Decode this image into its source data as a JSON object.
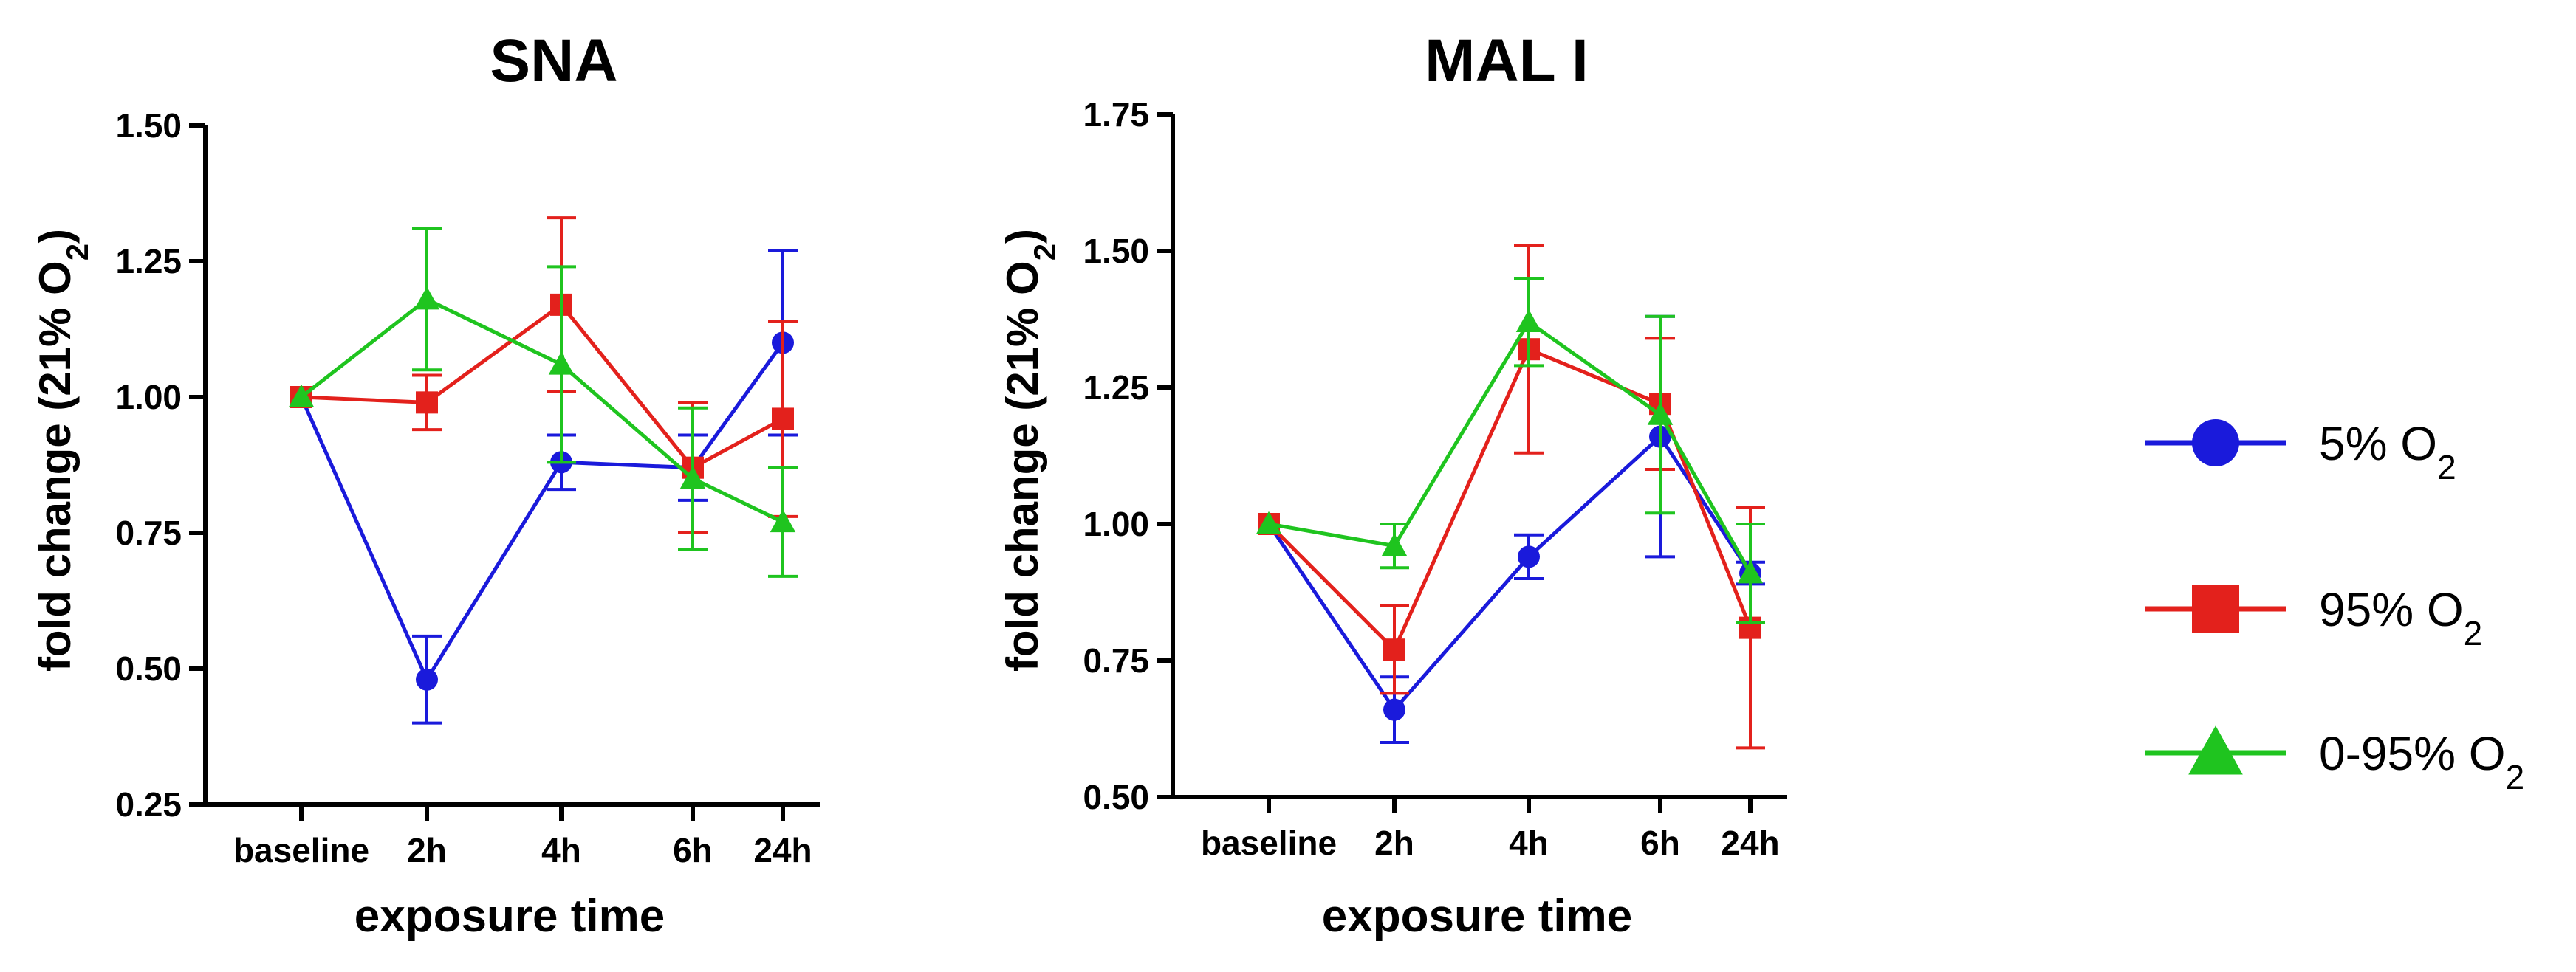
{
  "chart_data": [
    {
      "type": "line",
      "title": "SNA",
      "xlabel": "exposure time",
      "ylabel_main": "fold change (21% O",
      "ylabel_sub": "2",
      "ylabel_end": ")",
      "categories": [
        "baseline",
        "2h",
        "4h",
        "6h",
        "24h"
      ],
      "ylim": [
        0.25,
        1.5
      ],
      "yticks": [
        0.25,
        0.5,
        0.75,
        1.0,
        1.25,
        1.5
      ],
      "ytick_labels": [
        "0.25",
        "0.50",
        "0.75",
        "1.00",
        "1.25",
        "1.50"
      ],
      "series": [
        {
          "name": "5% O2",
          "color": "#1a1adb",
          "marker": "circle",
          "values": [
            1.0,
            0.48,
            0.88,
            0.87,
            1.1
          ],
          "err": [
            0,
            0.08,
            0.05,
            0.06,
            0.17
          ]
        },
        {
          "name": "95% O2",
          "color": "#e3211c",
          "marker": "square",
          "values": [
            1.0,
            0.99,
            1.17,
            0.87,
            0.96
          ],
          "err": [
            0,
            0.05,
            0.16,
            0.12,
            0.18
          ]
        },
        {
          "name": "0-95% O2",
          "color": "#1fc41f",
          "marker": "triangle",
          "values": [
            1.0,
            1.18,
            1.06,
            0.85,
            0.77
          ],
          "err": [
            0,
            0.13,
            0.18,
            0.13,
            0.1
          ]
        }
      ]
    },
    {
      "type": "line",
      "title": "MAL I",
      "xlabel": "exposure time",
      "ylabel_main": "fold change (21% O",
      "ylabel_sub": "2",
      "ylabel_end": ")",
      "categories": [
        "baseline",
        "2h",
        "4h",
        "6h",
        "24h"
      ],
      "ylim": [
        0.5,
        1.75
      ],
      "yticks": [
        0.5,
        0.75,
        1.0,
        1.25,
        1.5,
        1.75
      ],
      "ytick_labels": [
        "0.50",
        "0.75",
        "1.00",
        "1.25",
        "1.50",
        "1.75"
      ],
      "series": [
        {
          "name": "5% O2",
          "color": "#1a1adb",
          "marker": "circle",
          "values": [
            1.0,
            0.66,
            0.94,
            1.16,
            0.91
          ],
          "err": [
            0,
            0.06,
            0.04,
            0.22,
            0.02
          ]
        },
        {
          "name": "95% O2",
          "color": "#e3211c",
          "marker": "square",
          "values": [
            1.0,
            0.77,
            1.32,
            1.22,
            0.81
          ],
          "err": [
            0,
            0.08,
            0.19,
            0.12,
            0.22
          ]
        },
        {
          "name": "0-95% O2",
          "color": "#1fc41f",
          "marker": "triangle",
          "values": [
            1.0,
            0.96,
            1.37,
            1.2,
            0.91
          ],
          "err": [
            0,
            0.04,
            0.08,
            0.18,
            0.09
          ]
        }
      ]
    }
  ],
  "legend": [
    {
      "label_main": "5% O",
      "label_sub": "2",
      "color": "#1a1adb",
      "marker": "circle"
    },
    {
      "label_main": "95% O",
      "label_sub": "2",
      "color": "#e3211c",
      "marker": "square"
    },
    {
      "label_main": "0-95% O",
      "label_sub": "2",
      "color": "#1fc41f",
      "marker": "triangle"
    }
  ]
}
